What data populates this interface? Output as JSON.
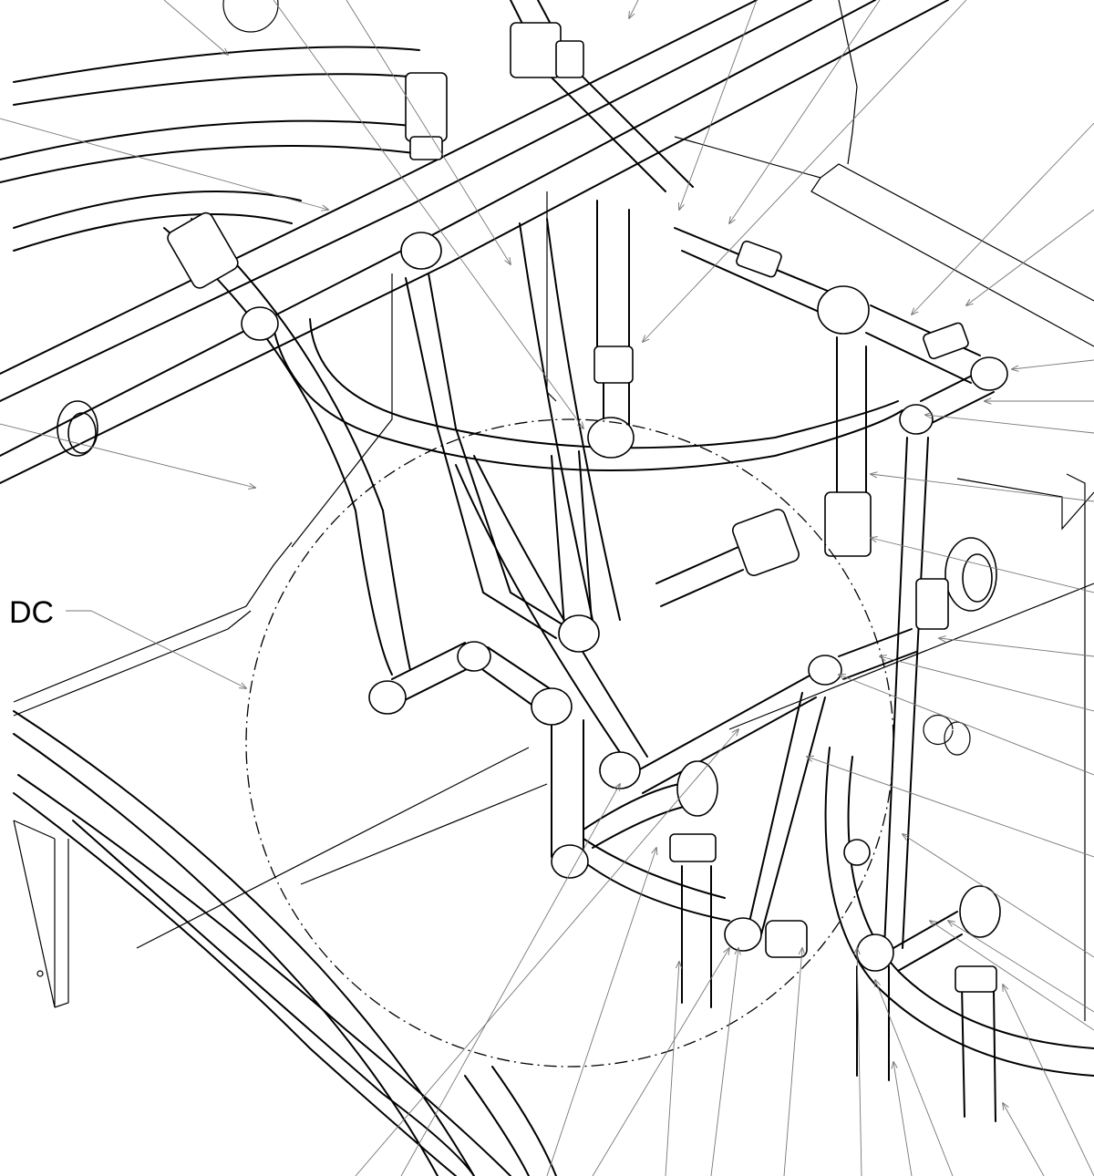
{
  "detail_callout": {
    "label": "DC"
  },
  "colors": {
    "line": "#000000",
    "leader": "#777777",
    "background": "#ffffff"
  }
}
